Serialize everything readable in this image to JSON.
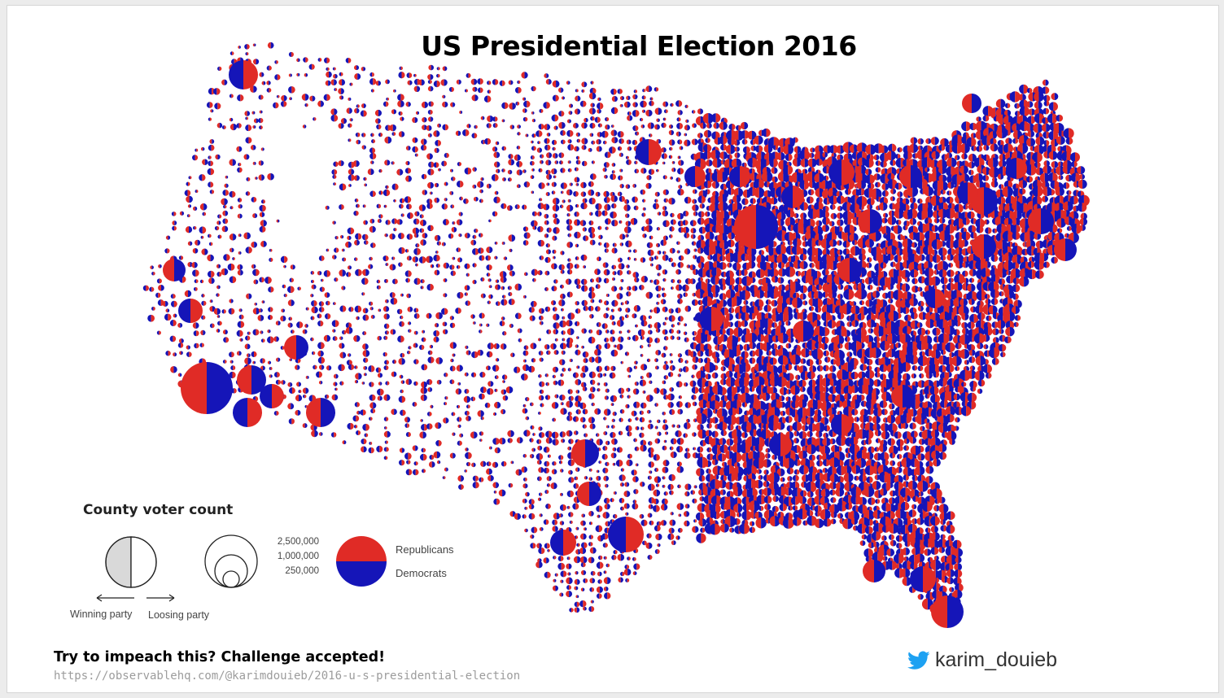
{
  "title": "US Presidential Election 2016",
  "legend": {
    "title": "County voter count",
    "scale_values": [
      "2,500,000",
      "1,000,000",
      "250,000"
    ],
    "parties": [
      "Republicans",
      "Democrats"
    ],
    "winning_label": "Winning party",
    "loosing_label": "Loosing party"
  },
  "footer": {
    "caption": "Try to impeach this? Challenge accepted!",
    "url": "https://observablehq.com/@karimdouieb/2016-u-s-presidential-election"
  },
  "author": {
    "handle": "karim_douieb",
    "icon": "twitter-bird-icon"
  },
  "colors": {
    "republican": "#e02b26",
    "democrat": "#1515b8",
    "legend_gray": "#d9d9d9"
  }
}
